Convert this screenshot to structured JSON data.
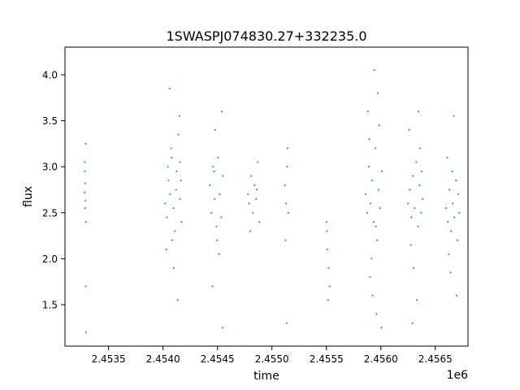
{
  "chart_data": {
    "type": "scatter",
    "title": "1SWASPJ074830.27+332235.0",
    "xlabel": "time",
    "ylabel": "flux",
    "x_offset_label": "1e6",
    "xlim": [
      2453100,
      2456800
    ],
    "ylim": [
      1.05,
      4.3
    ],
    "x_ticks": [
      2453500,
      2454000,
      2454500,
      2455000,
      2455500,
      2456000,
      2456500
    ],
    "x_tick_labels": [
      "2.4535",
      "2.4540",
      "2.4545",
      "2.4550",
      "2.4555",
      "2.4560",
      "2.4565"
    ],
    "y_ticks": [
      1.5,
      2.0,
      2.5,
      3.0,
      3.5,
      4.0
    ],
    "y_tick_labels": [
      "1.5",
      "2.0",
      "2.5",
      "3.0",
      "3.5",
      "4.0"
    ],
    "grid": false,
    "legend": "none",
    "marker_color": "#1f77b4",
    "series": [
      {
        "points": [
          [
            2453280,
            2.72
          ],
          [
            2453282,
            2.95
          ],
          [
            2453283,
            2.55
          ],
          [
            2453285,
            2.82
          ],
          [
            2453287,
            2.63
          ],
          [
            2453289,
            3.25
          ],
          [
            2453290,
            1.7
          ],
          [
            2453292,
            2.4
          ],
          [
            2453293,
            1.2
          ],
          [
            2453281,
            3.05
          ],
          [
            2454020,
            2.6
          ],
          [
            2454035,
            2.45
          ],
          [
            2454050,
            2.85
          ],
          [
            2454065,
            2.7
          ],
          [
            2454080,
            3.1
          ],
          [
            2454095,
            2.55
          ],
          [
            2454110,
            2.3
          ],
          [
            2454125,
            2.95
          ],
          [
            2454140,
            3.35
          ],
          [
            2454155,
            2.65
          ],
          [
            2454170,
            2.4
          ],
          [
            2454060,
            3.85
          ],
          [
            2454100,
            1.9
          ],
          [
            2454150,
            3.55
          ],
          [
            2454085,
            2.2
          ],
          [
            2454120,
            2.75
          ],
          [
            2454045,
            3.0
          ],
          [
            2454165,
            2.85
          ],
          [
            2454030,
            2.1
          ],
          [
            2454135,
            1.55
          ],
          [
            2454075,
            3.2
          ],
          [
            2454155,
            3.05
          ],
          [
            2454430,
            2.8
          ],
          [
            2454445,
            2.5
          ],
          [
            2454460,
            3.0
          ],
          [
            2454475,
            2.65
          ],
          [
            2454490,
            2.35
          ],
          [
            2454505,
            3.1
          ],
          [
            2454520,
            2.7
          ],
          [
            2454535,
            2.45
          ],
          [
            2454550,
            2.9
          ],
          [
            2454455,
            1.7
          ],
          [
            2454480,
            3.4
          ],
          [
            2454540,
            3.6
          ],
          [
            2454515,
            2.05
          ],
          [
            2454470,
            2.95
          ],
          [
            2454495,
            2.2
          ],
          [
            2454545,
            1.25
          ],
          [
            2454780,
            2.7
          ],
          [
            2454790,
            2.6
          ],
          [
            2454810,
            2.9
          ],
          [
            2454825,
            2.5
          ],
          [
            2454840,
            2.8
          ],
          [
            2454855,
            2.65
          ],
          [
            2454870,
            3.05
          ],
          [
            2454885,
            2.4
          ],
          [
            2454800,
            2.3
          ],
          [
            2454860,
            2.75
          ],
          [
            2455120,
            2.8
          ],
          [
            2455130,
            2.6
          ],
          [
            2455140,
            3.0
          ],
          [
            2455150,
            2.5
          ],
          [
            2455125,
            2.2
          ],
          [
            2455145,
            3.2
          ],
          [
            2455135,
            1.3
          ],
          [
            2455500,
            2.4
          ],
          [
            2455510,
            2.1
          ],
          [
            2455520,
            1.9
          ],
          [
            2455530,
            1.7
          ],
          [
            2455505,
            2.3
          ],
          [
            2455515,
            1.55
          ],
          [
            2455860,
            2.7
          ],
          [
            2455875,
            2.5
          ],
          [
            2455890,
            3.0
          ],
          [
            2455905,
            2.6
          ],
          [
            2455920,
            2.85
          ],
          [
            2455935,
            2.4
          ],
          [
            2455950,
            3.2
          ],
          [
            2455965,
            2.2
          ],
          [
            2455980,
            2.75
          ],
          [
            2455995,
            2.55
          ],
          [
            2456010,
            2.95
          ],
          [
            2455880,
            3.6
          ],
          [
            2455900,
            1.8
          ],
          [
            2455940,
            4.05
          ],
          [
            2455960,
            1.4
          ],
          [
            2455985,
            3.45
          ],
          [
            2456005,
            1.25
          ],
          [
            2455915,
            2.0
          ],
          [
            2455970,
            3.8
          ],
          [
            2455925,
            1.6
          ],
          [
            2455955,
            2.35
          ],
          [
            2455895,
            3.3
          ],
          [
            2456250,
            2.6
          ],
          [
            2456265,
            2.75
          ],
          [
            2456280,
            2.45
          ],
          [
            2456295,
            2.9
          ],
          [
            2456310,
            2.55
          ],
          [
            2456325,
            3.05
          ],
          [
            2456340,
            2.35
          ],
          [
            2456355,
            2.8
          ],
          [
            2456370,
            2.5
          ],
          [
            2456385,
            2.65
          ],
          [
            2456260,
            3.4
          ],
          [
            2456300,
            1.9
          ],
          [
            2456345,
            3.6
          ],
          [
            2456330,
            1.55
          ],
          [
            2456275,
            2.15
          ],
          [
            2456360,
            3.2
          ],
          [
            2456290,
            1.3
          ],
          [
            2456375,
            2.95
          ],
          [
            2456600,
            2.55
          ],
          [
            2456615,
            2.4
          ],
          [
            2456630,
            2.75
          ],
          [
            2456645,
            2.3
          ],
          [
            2456660,
            2.6
          ],
          [
            2456675,
            2.45
          ],
          [
            2456690,
            2.85
          ],
          [
            2456705,
            2.2
          ],
          [
            2456720,
            2.5
          ],
          [
            2456610,
            3.1
          ],
          [
            2456640,
            1.85
          ],
          [
            2456670,
            3.55
          ],
          [
            2456695,
            1.6
          ],
          [
            2456655,
            2.95
          ],
          [
            2456625,
            2.05
          ],
          [
            2456710,
            2.7
          ]
        ]
      }
    ]
  }
}
